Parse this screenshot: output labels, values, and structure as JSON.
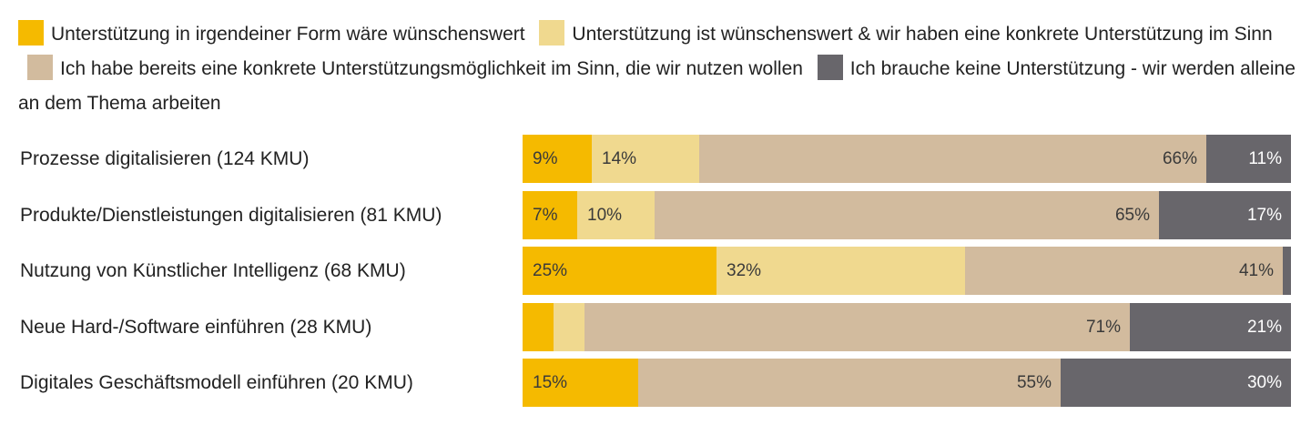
{
  "legend": [
    {
      "label": "Unterstützung in irgendeiner Form wäre wünschenswert",
      "color": "#F5BA00"
    },
    {
      "label": "Unterstützung ist wünschenswert & wir haben eine konkrete Unterstützung im Sinn",
      "color": "#F0D98F"
    },
    {
      "label": "Ich habe bereits eine konkrete Unterstützungsmöglichkeit im Sinn, die wir nutzen wollen",
      "color": "#D2BB9E"
    },
    {
      "label": "Ich brauche keine Unterstützung - wir werden alleine an dem Thema arbeiten",
      "color": "#68666B"
    }
  ],
  "chart_data": {
    "type": "bar",
    "orientation": "horizontal",
    "stacked": true,
    "normalized": true,
    "categories": [
      "Prozesse digitalisieren (124 KMU)",
      "Produkte/Dienstleistungen digitalisieren (81 KMU)",
      "Nutzung von Künstlicher Intelligenz (68 KMU)",
      "Neue Hard-/Software einführen (28 KMU)",
      "Digitales Geschäftsmodell einführen (20 KMU)"
    ],
    "series": [
      {
        "name": "Unterstützung in irgendeiner Form wäre wünschenswert",
        "values": [
          9,
          7,
          25,
          4,
          15
        ],
        "labels": [
          "9%",
          "7%",
          "25%",
          "",
          "15%"
        ]
      },
      {
        "name": "Unterstützung ist wünschenswert & wir haben eine konkrete Unterstützung im Sinn",
        "values": [
          14,
          10,
          32,
          4,
          0
        ],
        "labels": [
          "14%",
          "10%",
          "32%",
          "",
          ""
        ]
      },
      {
        "name": "Ich habe bereits eine konkrete Unterstützungsmöglichkeit im Sinn, die wir nutzen wollen",
        "values": [
          66,
          65,
          41,
          71,
          55
        ],
        "labels": [
          "66%",
          "65%",
          "41%",
          "71%",
          "55%"
        ]
      },
      {
        "name": "Ich brauche keine Unterstützung - wir werden alleine an dem Thema arbeiten",
        "values": [
          11,
          17,
          1,
          21,
          30
        ],
        "labels": [
          "11%",
          "17%",
          "",
          "21%",
          "30%"
        ]
      }
    ],
    "xlim": [
      0,
      100
    ],
    "grid": false,
    "legend_position": "top"
  }
}
